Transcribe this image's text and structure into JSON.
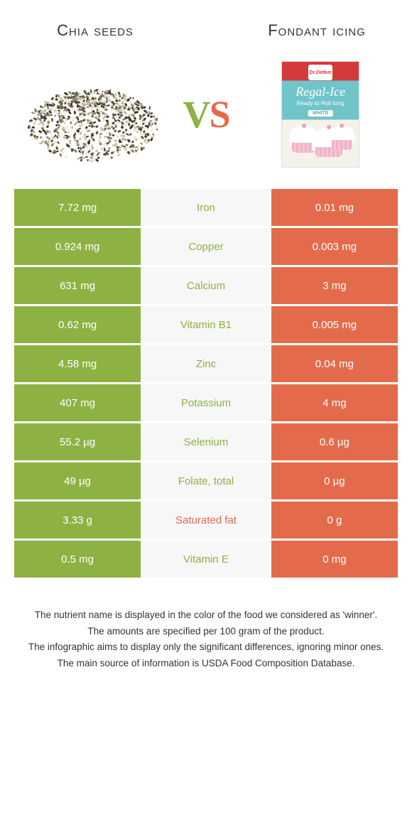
{
  "header": {
    "left_title": "Chia seeds",
    "right_title": "Fondant icing",
    "vs_v": "V",
    "vs_s": "S"
  },
  "colors": {
    "green": "#8eb143",
    "orange": "#e36b4c",
    "mid_bg": "#f7f7f7"
  },
  "product_box": {
    "logo": "Dr.Oetker",
    "title": "Regal-Ice",
    "subtitle": "Ready to Roll Icing",
    "tag": "WHITE"
  },
  "rows": [
    {
      "left": "7.72 mg",
      "mid": "Iron",
      "right": "0.01 mg",
      "winner": "left"
    },
    {
      "left": "0.924 mg",
      "mid": "Copper",
      "right": "0.003 mg",
      "winner": "left"
    },
    {
      "left": "631 mg",
      "mid": "Calcium",
      "right": "3 mg",
      "winner": "left"
    },
    {
      "left": "0.62 mg",
      "mid": "Vitamin B1",
      "right": "0.005 mg",
      "winner": "left"
    },
    {
      "left": "4.58 mg",
      "mid": "Zinc",
      "right": "0.04 mg",
      "winner": "left"
    },
    {
      "left": "407 mg",
      "mid": "Potassium",
      "right": "4 mg",
      "winner": "left"
    },
    {
      "left": "55.2 µg",
      "mid": "Selenium",
      "right": "0.6 µg",
      "winner": "left"
    },
    {
      "left": "49 µg",
      "mid": "Folate, total",
      "right": "0 µg",
      "winner": "left"
    },
    {
      "left": "3.33 g",
      "mid": "Saturated fat",
      "right": "0 g",
      "winner": "right"
    },
    {
      "left": "0.5 mg",
      "mid": "Vitamin E",
      "right": "0 mg",
      "winner": "left"
    }
  ],
  "footnotes": [
    "The nutrient name is displayed in the color of the food we considered as 'winner'.",
    "The amounts are specified per 100 gram of the product.",
    "The infographic aims to display only the significant differences, ignoring minor ones.",
    "The main source of information is USDA Food Composition Database."
  ]
}
